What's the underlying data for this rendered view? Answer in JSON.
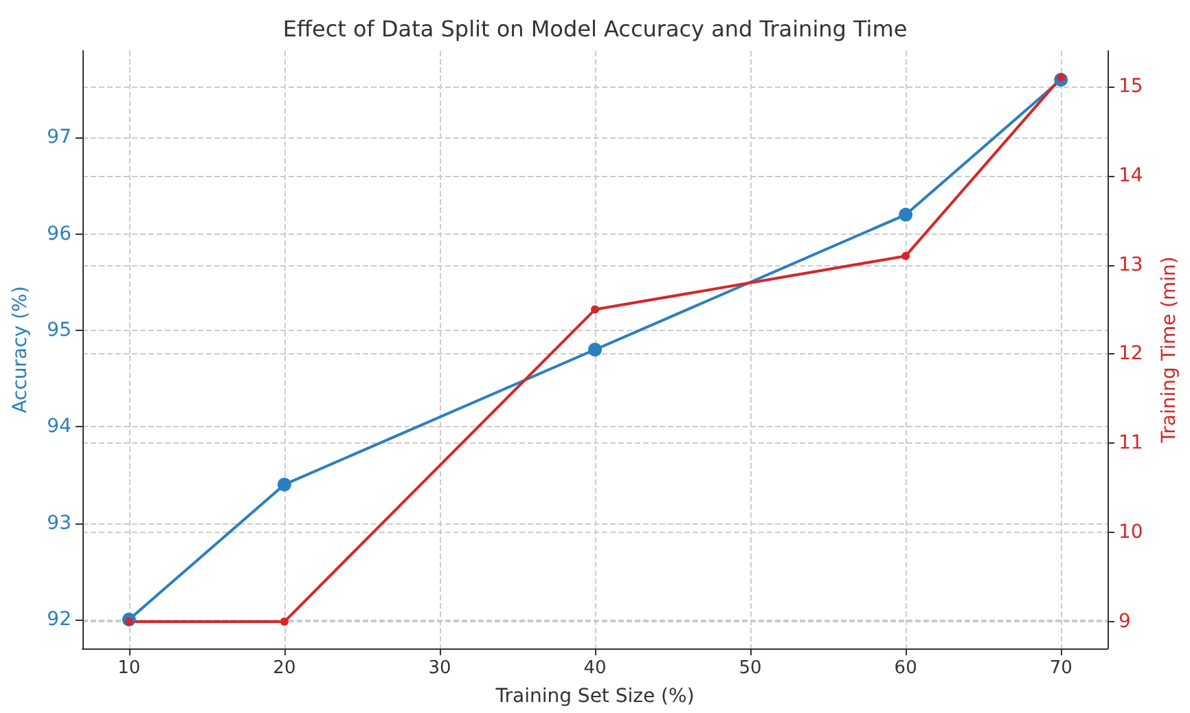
{
  "chart_data": {
    "type": "line",
    "title": "Effect of Data Split on Model Accuracy and Training Time",
    "xlabel": "Training Set Size (%)",
    "ylabel": "Accuracy (%)",
    "y2label": "Training Time (min)",
    "x": [
      10,
      20,
      40,
      60,
      70
    ],
    "series": [
      {
        "color": "#2a7fc0",
        "values": [
          92,
          93.4,
          94.8,
          96.2,
          97.6
        ]
      },
      {
        "color": "#d62728",
        "values": [
          9,
          9,
          12.5,
          13.1,
          15.1
        ],
        "axis": "y2"
      }
    ],
    "xlim": [
      7,
      73
    ],
    "xticks": [
      10,
      20,
      30,
      40,
      50,
      60,
      70
    ],
    "ylim": [
      91.7,
      97.9
    ],
    "yticks": [
      92,
      93,
      94,
      95,
      96,
      97
    ],
    "y2lim": [
      8.7,
      15.4
    ],
    "y2ticks": [
      9,
      10,
      11,
      12,
      13,
      14,
      15
    ],
    "grid": true,
    "marker": "circle",
    "line_style": "solid"
  }
}
